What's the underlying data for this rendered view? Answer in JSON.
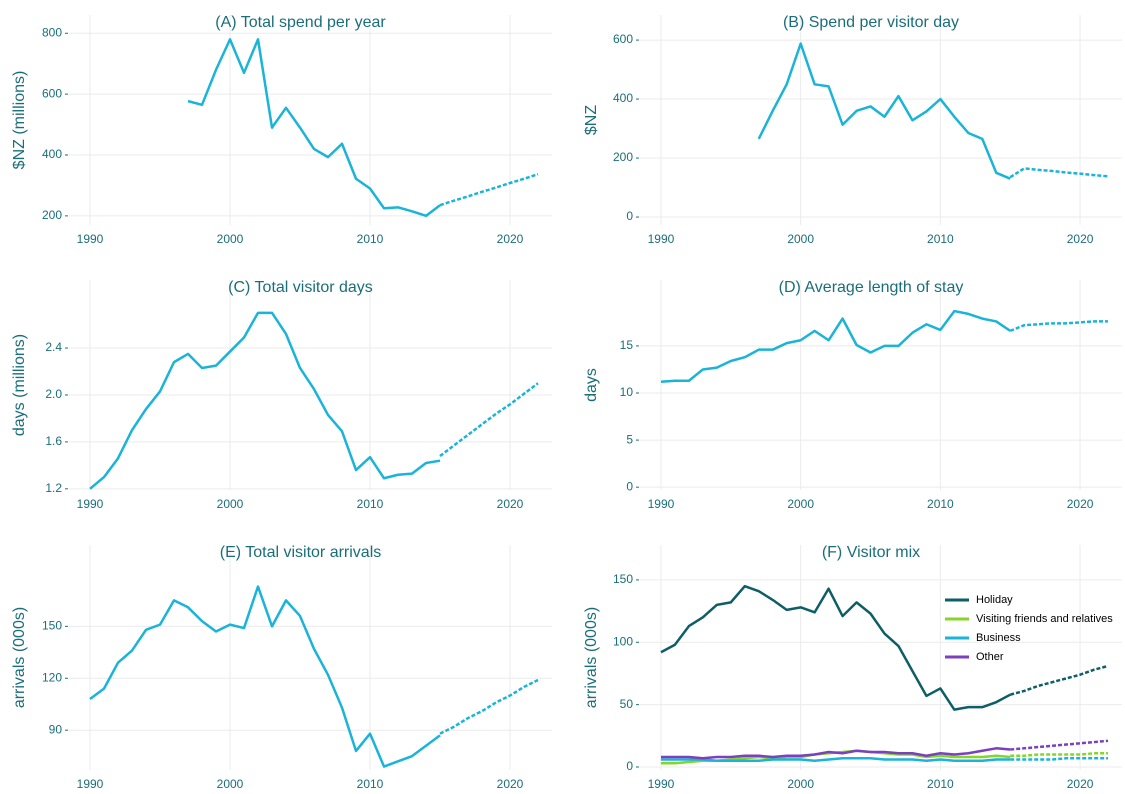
{
  "chart_data": [
    {
      "type": "line",
      "title": "(A) Total spend per year",
      "ylabel": "$NZ (millions)",
      "x": [
        1997,
        1998,
        1999,
        2000,
        2001,
        2002,
        2003,
        2004,
        2005,
        2006,
        2007,
        2008,
        2009,
        2010,
        2011,
        2012,
        2013,
        2014,
        2015
      ],
      "forecast_x": [
        2015,
        2016,
        2017,
        2018,
        2019,
        2020,
        2021,
        2022
      ],
      "series": [
        {
          "color": "#1ab4d8",
          "values": [
            577,
            565,
            680,
            780,
            670,
            780,
            490,
            555,
            490,
            420,
            393,
            437,
            322,
            290,
            225,
            228,
            215,
            200,
            235
          ],
          "forecast_values": [
            235,
            250,
            264,
            279,
            293,
            308,
            322,
            337
          ]
        }
      ],
      "xlim": [
        1988.5,
        2023
      ],
      "ylim": [
        170,
        860
      ],
      "xticks": [
        1990,
        2000,
        2010,
        2020
      ],
      "yticks": [
        200,
        400,
        600,
        800
      ],
      "grid": true
    },
    {
      "type": "line",
      "title": "(B) Spend per visitor day",
      "ylabel": "$NZ",
      "x": [
        1997,
        1998,
        1999,
        2000,
        2001,
        2002,
        2003,
        2004,
        2005,
        2006,
        2007,
        2008,
        2009,
        2010,
        2011,
        2012,
        2013,
        2014,
        2015
      ],
      "forecast_x": [
        2015,
        2016,
        2017,
        2018,
        2019,
        2020,
        2021,
        2022
      ],
      "series": [
        {
          "color": "#1ab4d8",
          "values": [
            265,
            360,
            450,
            588,
            450,
            443,
            313,
            360,
            375,
            340,
            410,
            328,
            358,
            400,
            340,
            285,
            265,
            150,
            130
          ],
          "forecast_values": [
            135,
            165,
            160,
            156,
            151,
            147,
            142,
            138
          ]
        }
      ],
      "xlim": [
        1988.5,
        2023
      ],
      "ylim": [
        -27,
        685
      ],
      "xticks": [
        1990,
        2000,
        2010,
        2020
      ],
      "yticks": [
        0,
        200,
        400,
        600
      ],
      "grid": true
    },
    {
      "type": "line",
      "title": "(C) Total visitor days",
      "ylabel": "days (millions)",
      "x": [
        1990,
        1991,
        1992,
        1993,
        1994,
        1995,
        1996,
        1997,
        1998,
        1999,
        2000,
        2001,
        2002,
        2003,
        2004,
        2005,
        2006,
        2007,
        2008,
        2009,
        2010,
        2011,
        2012,
        2013,
        2014,
        2015
      ],
      "forecast_x": [
        2015,
        2016,
        2017,
        2018,
        2019,
        2020,
        2021,
        2022
      ],
      "series": [
        {
          "color": "#1ab4d8",
          "values": [
            1.2,
            1.3,
            1.46,
            1.7,
            1.88,
            2.03,
            2.28,
            2.35,
            2.23,
            2.25,
            2.37,
            2.49,
            2.7,
            2.7,
            2.52,
            2.23,
            2.05,
            1.83,
            1.69,
            1.36,
            1.47,
            1.29,
            1.32,
            1.33,
            1.42,
            1.44
          ],
          "forecast_values": [
            1.48,
            1.57,
            1.66,
            1.75,
            1.84,
            1.92,
            2.01,
            2.1
          ]
        }
      ],
      "xlim": [
        1988.5,
        2023
      ],
      "ylim": [
        1.19,
        2.98
      ],
      "xticks": [
        1990,
        2000,
        2010,
        2020
      ],
      "yticks": [
        1.2,
        1.6,
        {
          "value": 2,
          "label": "2.0"
        },
        2.4
      ],
      "grid": true
    },
    {
      "type": "line",
      "title": "(D) Average length of stay",
      "ylabel": "days",
      "x": [
        1990,
        1991,
        1992,
        1993,
        1994,
        1995,
        1996,
        1997,
        1998,
        1999,
        2000,
        2001,
        2002,
        2003,
        2004,
        2005,
        2006,
        2007,
        2008,
        2009,
        2010,
        2011,
        2012,
        2013,
        2014,
        2015
      ],
      "forecast_x": [
        2015,
        2016,
        2017,
        2018,
        2019,
        2020,
        2021,
        2022
      ],
      "series": [
        {
          "color": "#1ab4d8",
          "values": [
            11.2,
            11.3,
            11.3,
            12.5,
            12.7,
            13.4,
            13.8,
            14.6,
            14.6,
            15.3,
            15.6,
            16.6,
            15.6,
            17.9,
            15.1,
            14.3,
            15.0,
            15.0,
            16.4,
            17.3,
            16.7,
            18.7,
            18.4,
            17.9,
            17.6,
            16.6
          ],
          "forecast_values": [
            16.6,
            17.2,
            17.3,
            17.4,
            17.4,
            17.5,
            17.6,
            17.6
          ]
        }
      ],
      "xlim": [
        1988.5,
        2023
      ],
      "ylim": [
        -0.3,
        22
      ],
      "xticks": [
        1990,
        2000,
        2010,
        2020
      ],
      "yticks": [
        0,
        5,
        10,
        15
      ],
      "grid": true
    },
    {
      "type": "line",
      "title": "(E) Total visitor arrivals",
      "ylabel": "arrivals (000s)",
      "x": [
        1990,
        1991,
        1992,
        1993,
        1994,
        1995,
        1996,
        1997,
        1998,
        1999,
        2000,
        2001,
        2002,
        2003,
        2004,
        2005,
        2006,
        2007,
        2008,
        2009,
        2010,
        2011,
        2012,
        2013,
        2014,
        2015
      ],
      "forecast_x": [
        2015,
        2016,
        2017,
        2018,
        2019,
        2020,
        2021,
        2022
      ],
      "series": [
        {
          "color": "#1ab4d8",
          "values": [
            108,
            114,
            129,
            136,
            148,
            151,
            165,
            161,
            153,
            147,
            151,
            149,
            173,
            150,
            165,
            156,
            137,
            122,
            103,
            78,
            88,
            69,
            72,
            75,
            81,
            87
          ],
          "forecast_values": [
            88,
            92,
            97,
            101,
            106,
            110,
            115,
            119
          ]
        }
      ],
      "xlim": [
        1988.5,
        2023
      ],
      "ylim": [
        67,
        197
      ],
      "xticks": [
        1990,
        2000,
        2010,
        2020
      ],
      "yticks": [
        90,
        120,
        150
      ],
      "grid": true
    },
    {
      "type": "line",
      "title": "(F) Visitor mix",
      "ylabel": "arrivals (000s)",
      "x": [
        1990,
        1991,
        1992,
        1993,
        1994,
        1995,
        1996,
        1997,
        1998,
        1999,
        2000,
        2001,
        2002,
        2003,
        2004,
        2005,
        2006,
        2007,
        2008,
        2009,
        2010,
        2011,
        2012,
        2013,
        2014,
        2015
      ],
      "forecast_x": [
        2015,
        2016,
        2017,
        2018,
        2019,
        2020,
        2021,
        2022
      ],
      "series": [
        {
          "name": "Holiday",
          "color": "#0e5e66",
          "values": [
            92,
            98,
            113,
            120,
            130,
            132,
            145,
            141,
            134,
            126,
            128,
            124,
            143,
            121,
            132,
            123,
            107,
            97,
            77,
            57,
            63,
            46,
            48,
            48,
            52,
            58
          ],
          "forecast_values": [
            58,
            61,
            65,
            68,
            71,
            74,
            78,
            81
          ]
        },
        {
          "name": "Visiting friends and relatives",
          "color": "#85d52a",
          "values": [
            3,
            3,
            4,
            5,
            5,
            6,
            7,
            8,
            7,
            8,
            8,
            10,
            11,
            12,
            13,
            12,
            11,
            10,
            10,
            8,
            9,
            8,
            8,
            8,
            9,
            8
          ],
          "forecast_values": [
            9,
            9,
            10,
            10,
            10,
            10,
            11,
            11
          ]
        },
        {
          "name": "Business",
          "color": "#1ab4d8",
          "values": [
            6,
            6,
            6,
            6,
            5,
            5,
            5,
            5,
            6,
            6,
            6,
            5,
            6,
            7,
            7,
            7,
            6,
            6,
            6,
            5,
            6,
            5,
            5,
            5,
            6,
            6
          ],
          "forecast_values": [
            6,
            6,
            6,
            6,
            7,
            7,
            7,
            7
          ]
        },
        {
          "name": "Other",
          "color": "#7a40bd",
          "values": [
            8,
            8,
            8,
            7,
            8,
            8,
            9,
            9,
            8,
            9,
            9,
            10,
            12,
            11,
            13,
            12,
            12,
            11,
            11,
            9,
            11,
            10,
            11,
            13,
            15,
            14
          ],
          "forecast_values": [
            14,
            15,
            16,
            17,
            18,
            19,
            20,
            21
          ]
        }
      ],
      "xlim": [
        1988.5,
        2023
      ],
      "ylim": [
        -2.4,
        178
      ],
      "xticks": [
        1990,
        2000,
        2010,
        2020
      ],
      "yticks": [
        0,
        50,
        100,
        150
      ],
      "grid": true,
      "legend": "top-right"
    }
  ]
}
